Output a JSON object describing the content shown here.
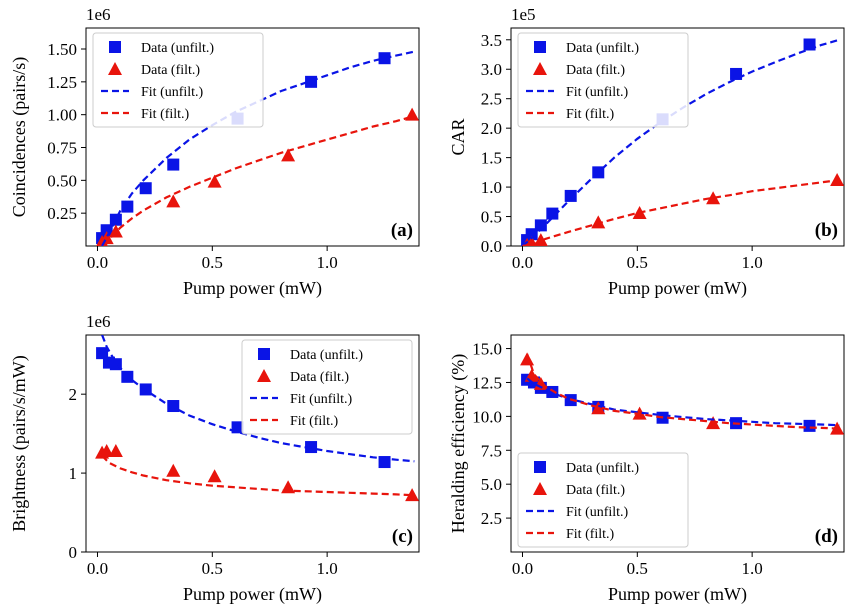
{
  "figure": {
    "colors": {
      "unfiltered": "#0a14e6",
      "filtered": "#e8140c",
      "axis": "#000000",
      "legend_border": "#cccccc"
    }
  },
  "chart_data": [
    {
      "id": "a",
      "type": "scatter",
      "panel_tag": "(a)",
      "xlabel": "Pump power (mW)",
      "ylabel": "Coincidences (pairs/s)",
      "exponent_label": "1e6",
      "xlim": [
        -0.05,
        1.4
      ],
      "ylim": [
        0,
        1.66
      ],
      "xticks": [
        0,
        0.5,
        1.0
      ],
      "xtick_labels": [
        "0.0",
        "0.5",
        "1.0"
      ],
      "yticks": [
        0.25,
        0.5,
        0.75,
        1.0,
        1.25,
        1.5
      ],
      "ytick_labels": [
        "0.25",
        "0.50",
        "0.75",
        "1.00",
        "1.25",
        "1.50"
      ],
      "legend": {
        "position": "top-left",
        "entries": [
          "Data (unfilt.)",
          "Data (filt.)",
          "Fit (unfilt.)",
          "Fit (filt.)"
        ]
      },
      "series": [
        {
          "name": "Data (unfilt.)",
          "kind": "points",
          "marker": "square",
          "color": "#0a14e6",
          "x": [
            0.02,
            0.04,
            0.08,
            0.13,
            0.21,
            0.33,
            0.61,
            0.93,
            1.25
          ],
          "y": [
            0.06,
            0.12,
            0.2,
            0.3,
            0.44,
            0.62,
            0.97,
            1.25,
            1.43
          ]
        },
        {
          "name": "Data (filt.)",
          "kind": "points",
          "marker": "triangle",
          "color": "#e8140c",
          "x": [
            0.02,
            0.04,
            0.08,
            0.33,
            0.51,
            0.83,
            1.37
          ],
          "y": [
            0.03,
            0.06,
            0.11,
            0.34,
            0.49,
            0.69,
            1.0
          ]
        },
        {
          "name": "Fit (unfilt.)",
          "kind": "line",
          "color": "#0a14e6",
          "x": [
            0.02,
            0.05,
            0.1,
            0.15,
            0.2,
            0.3,
            0.4,
            0.5,
            0.6,
            0.7,
            0.8,
            0.9,
            1.0,
            1.1,
            1.2,
            1.3,
            1.38
          ],
          "y": [
            0.0,
            0.1,
            0.27,
            0.4,
            0.5,
            0.67,
            0.81,
            0.92,
            1.02,
            1.1,
            1.18,
            1.24,
            1.3,
            1.36,
            1.41,
            1.45,
            1.48
          ]
        },
        {
          "name": "Fit (filt.)",
          "kind": "line",
          "color": "#e8140c",
          "x": [
            0.03,
            0.05,
            0.1,
            0.15,
            0.2,
            0.3,
            0.4,
            0.5,
            0.6,
            0.7,
            0.8,
            0.9,
            1.0,
            1.1,
            1.2,
            1.3,
            1.38
          ],
          "y": [
            0.0,
            0.05,
            0.14,
            0.21,
            0.27,
            0.37,
            0.45,
            0.52,
            0.59,
            0.65,
            0.71,
            0.76,
            0.81,
            0.86,
            0.91,
            0.95,
            0.99
          ]
        }
      ]
    },
    {
      "id": "b",
      "type": "scatter",
      "panel_tag": "(b)",
      "xlabel": "Pump power (mW)",
      "ylabel": "CAR",
      "exponent_label": "1e5",
      "xlim": [
        -0.05,
        1.4
      ],
      "ylim": [
        0,
        3.7
      ],
      "xticks": [
        0,
        0.5,
        1.0
      ],
      "xtick_labels": [
        "0.0",
        "0.5",
        "1.0"
      ],
      "yticks": [
        0,
        0.5,
        1.0,
        1.5,
        2.0,
        2.5,
        3.0,
        3.5
      ],
      "ytick_labels": [
        "0.0",
        "0.5",
        "1.0",
        "1.5",
        "2.0",
        "2.5",
        "3.0",
        "3.5"
      ],
      "legend": {
        "position": "top-left",
        "entries": [
          "Data (unfilt.)",
          "Data (filt.)",
          "Fit (unfilt.)",
          "Fit (filt.)"
        ]
      },
      "series": [
        {
          "name": "Data (unfilt.)",
          "kind": "points",
          "marker": "square",
          "color": "#0a14e6",
          "x": [
            0.02,
            0.04,
            0.08,
            0.13,
            0.21,
            0.33,
            0.61,
            0.93,
            1.25
          ],
          "y": [
            0.1,
            0.2,
            0.35,
            0.55,
            0.85,
            1.25,
            2.15,
            2.92,
            3.42
          ]
        },
        {
          "name": "Data (filt.)",
          "kind": "points",
          "marker": "triangle",
          "color": "#e8140c",
          "x": [
            0.02,
            0.04,
            0.08,
            0.33,
            0.51,
            0.83,
            1.37
          ],
          "y": [
            0.02,
            0.05,
            0.1,
            0.4,
            0.56,
            0.81,
            1.12
          ]
        },
        {
          "name": "Fit (unfilt.)",
          "kind": "line",
          "color": "#0a14e6",
          "x": [
            0.0,
            0.05,
            0.1,
            0.2,
            0.3,
            0.4,
            0.5,
            0.6,
            0.7,
            0.8,
            0.9,
            1.0,
            1.1,
            1.2,
            1.3,
            1.38
          ],
          "y": [
            0.0,
            0.17,
            0.36,
            0.76,
            1.14,
            1.5,
            1.82,
            2.1,
            2.35,
            2.58,
            2.78,
            2.96,
            3.12,
            3.27,
            3.41,
            3.5
          ]
        },
        {
          "name": "Fit (filt.)",
          "kind": "line",
          "color": "#e8140c",
          "x": [
            0.0,
            0.05,
            0.1,
            0.2,
            0.3,
            0.4,
            0.5,
            0.6,
            0.7,
            0.8,
            0.9,
            1.0,
            1.1,
            1.2,
            1.3,
            1.38
          ],
          "y": [
            0.0,
            0.03,
            0.12,
            0.24,
            0.35,
            0.46,
            0.56,
            0.64,
            0.72,
            0.8,
            0.86,
            0.93,
            0.98,
            1.03,
            1.08,
            1.12
          ]
        }
      ]
    },
    {
      "id": "c",
      "type": "scatter",
      "panel_tag": "(c)",
      "xlabel": "Pump power (mW)",
      "ylabel": "Brightness (pairs/s/mW)",
      "exponent_label": "1e6",
      "xlim": [
        -0.05,
        1.4
      ],
      "ylim": [
        0,
        2.75
      ],
      "xticks": [
        0,
        0.5,
        1.0
      ],
      "xtick_labels": [
        "0.0",
        "0.5",
        "1.0"
      ],
      "yticks": [
        0,
        1,
        2
      ],
      "ytick_labels": [
        "0",
        "1",
        "2"
      ],
      "legend": {
        "position": "top-right",
        "entries": [
          "Data (unfilt.)",
          "Data (filt.)",
          "Fit (unfilt.)",
          "Fit (filt.)"
        ]
      },
      "series": [
        {
          "name": "Data (unfilt.)",
          "kind": "points",
          "marker": "square",
          "color": "#0a14e6",
          "x": [
            0.02,
            0.05,
            0.08,
            0.13,
            0.21,
            0.33,
            0.61,
            0.93,
            1.25
          ],
          "y": [
            2.52,
            2.4,
            2.38,
            2.22,
            2.06,
            1.85,
            1.58,
            1.33,
            1.14
          ]
        },
        {
          "name": "Data (filt.)",
          "kind": "points",
          "marker": "triangle",
          "color": "#e8140c",
          "x": [
            0.02,
            0.04,
            0.08,
            0.33,
            0.51,
            0.83,
            1.37
          ],
          "y": [
            1.26,
            1.28,
            1.28,
            1.03,
            0.96,
            0.82,
            0.72
          ]
        },
        {
          "name": "Fit (unfilt.)",
          "kind": "line",
          "color": "#0a14e6",
          "x": [
            0.02,
            0.04,
            0.07,
            0.1,
            0.15,
            0.2,
            0.3,
            0.4,
            0.5,
            0.6,
            0.7,
            0.8,
            0.9,
            1.0,
            1.1,
            1.2,
            1.3,
            1.38
          ],
          "y": [
            2.75,
            2.6,
            2.45,
            2.33,
            2.18,
            2.07,
            1.88,
            1.73,
            1.62,
            1.53,
            1.45,
            1.38,
            1.33,
            1.28,
            1.24,
            1.2,
            1.17,
            1.15
          ]
        },
        {
          "name": "Fit (filt.)",
          "kind": "line",
          "color": "#e8140c",
          "x": [
            0.02,
            0.05,
            0.1,
            0.15,
            0.2,
            0.3,
            0.4,
            0.5,
            0.6,
            0.7,
            0.8,
            0.9,
            1.0,
            1.1,
            1.2,
            1.3,
            1.38
          ],
          "y": [
            1.22,
            1.13,
            1.06,
            1.01,
            0.97,
            0.91,
            0.87,
            0.84,
            0.82,
            0.8,
            0.78,
            0.77,
            0.76,
            0.75,
            0.74,
            0.73,
            0.72
          ]
        }
      ]
    },
    {
      "id": "d",
      "type": "scatter",
      "panel_tag": "(d)",
      "xlabel": "Pump power (mW)",
      "ylabel": "Heralding efficiency (%)",
      "exponent_label": "",
      "xlim": [
        -0.05,
        1.4
      ],
      "ylim": [
        0,
        16
      ],
      "xticks": [
        0,
        0.5,
        1.0
      ],
      "xtick_labels": [
        "0.0",
        "0.5",
        "1.0"
      ],
      "yticks": [
        2.5,
        5.0,
        7.5,
        10.0,
        12.5,
        15.0
      ],
      "ytick_labels": [
        "2.5",
        "5.0",
        "7.5",
        "10.0",
        "12.5",
        "15.0"
      ],
      "legend": {
        "position": "bottom-left",
        "entries": [
          "Data (unfilt.)",
          "Data (filt.)",
          "Fit (unfilt.)",
          "Fit (filt.)"
        ]
      },
      "series": [
        {
          "name": "Data (unfilt.)",
          "kind": "points",
          "marker": "square",
          "color": "#0a14e6",
          "x": [
            0.02,
            0.05,
            0.08,
            0.13,
            0.21,
            0.33,
            0.61,
            0.93,
            1.25
          ],
          "y": [
            12.7,
            12.5,
            12.1,
            11.8,
            11.2,
            10.7,
            9.9,
            9.5,
            9.3
          ]
        },
        {
          "name": "Data (filt.)",
          "kind": "points",
          "marker": "triangle",
          "color": "#e8140c",
          "x": [
            0.02,
            0.04,
            0.08,
            0.33,
            0.51,
            0.83,
            1.37
          ],
          "y": [
            14.2,
            13.0,
            12.4,
            10.6,
            10.2,
            9.5,
            9.1
          ]
        },
        {
          "name": "Fit (unfilt.)",
          "kind": "line",
          "color": "#0a14e6",
          "x": [
            0.02,
            0.05,
            0.1,
            0.15,
            0.2,
            0.3,
            0.4,
            0.5,
            0.6,
            0.7,
            0.8,
            0.9,
            1.0,
            1.1,
            1.2,
            1.3,
            1.38
          ],
          "y": [
            12.8,
            12.4,
            12.0,
            11.6,
            11.3,
            10.9,
            10.5,
            10.3,
            10.1,
            9.95,
            9.8,
            9.7,
            9.6,
            9.5,
            9.45,
            9.4,
            9.35
          ]
        },
        {
          "name": "Fit (filt.)",
          "kind": "line",
          "color": "#e8140c",
          "x": [
            0.02,
            0.05,
            0.1,
            0.15,
            0.2,
            0.3,
            0.4,
            0.5,
            0.6,
            0.7,
            0.8,
            0.9,
            1.0,
            1.1,
            1.2,
            1.3,
            1.38
          ],
          "y": [
            14.6,
            13.1,
            12.2,
            11.7,
            11.3,
            10.8,
            10.4,
            10.2,
            9.95,
            9.8,
            9.65,
            9.5,
            9.4,
            9.3,
            9.2,
            9.15,
            9.1
          ]
        }
      ]
    }
  ]
}
